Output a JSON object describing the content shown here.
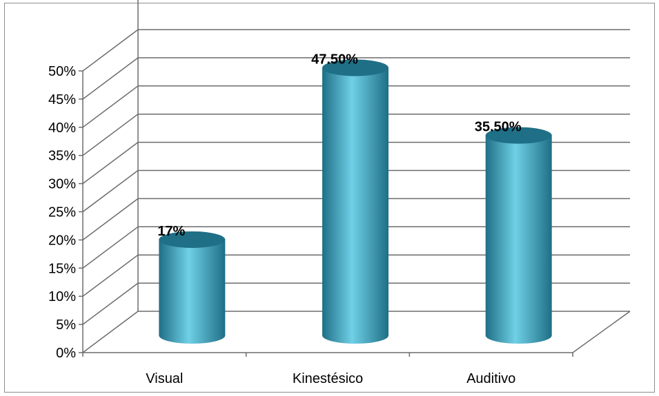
{
  "chart_data": {
    "type": "bar",
    "style": "3d-cylinder",
    "categories": [
      "Visual",
      "Kinestésico",
      "Auditivo"
    ],
    "values": [
      17,
      47.5,
      35.5
    ],
    "data_labels": [
      "17%",
      "47.50%",
      "35.50%"
    ],
    "ylim": [
      0,
      50
    ],
    "ytick_labels": [
      "0%",
      "5%",
      "10%",
      "15%",
      "20%",
      "25%",
      "30%",
      "35%",
      "40%",
      "45%",
      "50%"
    ],
    "grid": true,
    "legend": "none",
    "title": "",
    "xlabel": "",
    "ylabel": "",
    "colors": {
      "bar_main": "#3aa6c2",
      "bar_dark": "#1f6f86",
      "bar_light": "#6fd0e6",
      "grid": "#6b6b6b"
    }
  }
}
